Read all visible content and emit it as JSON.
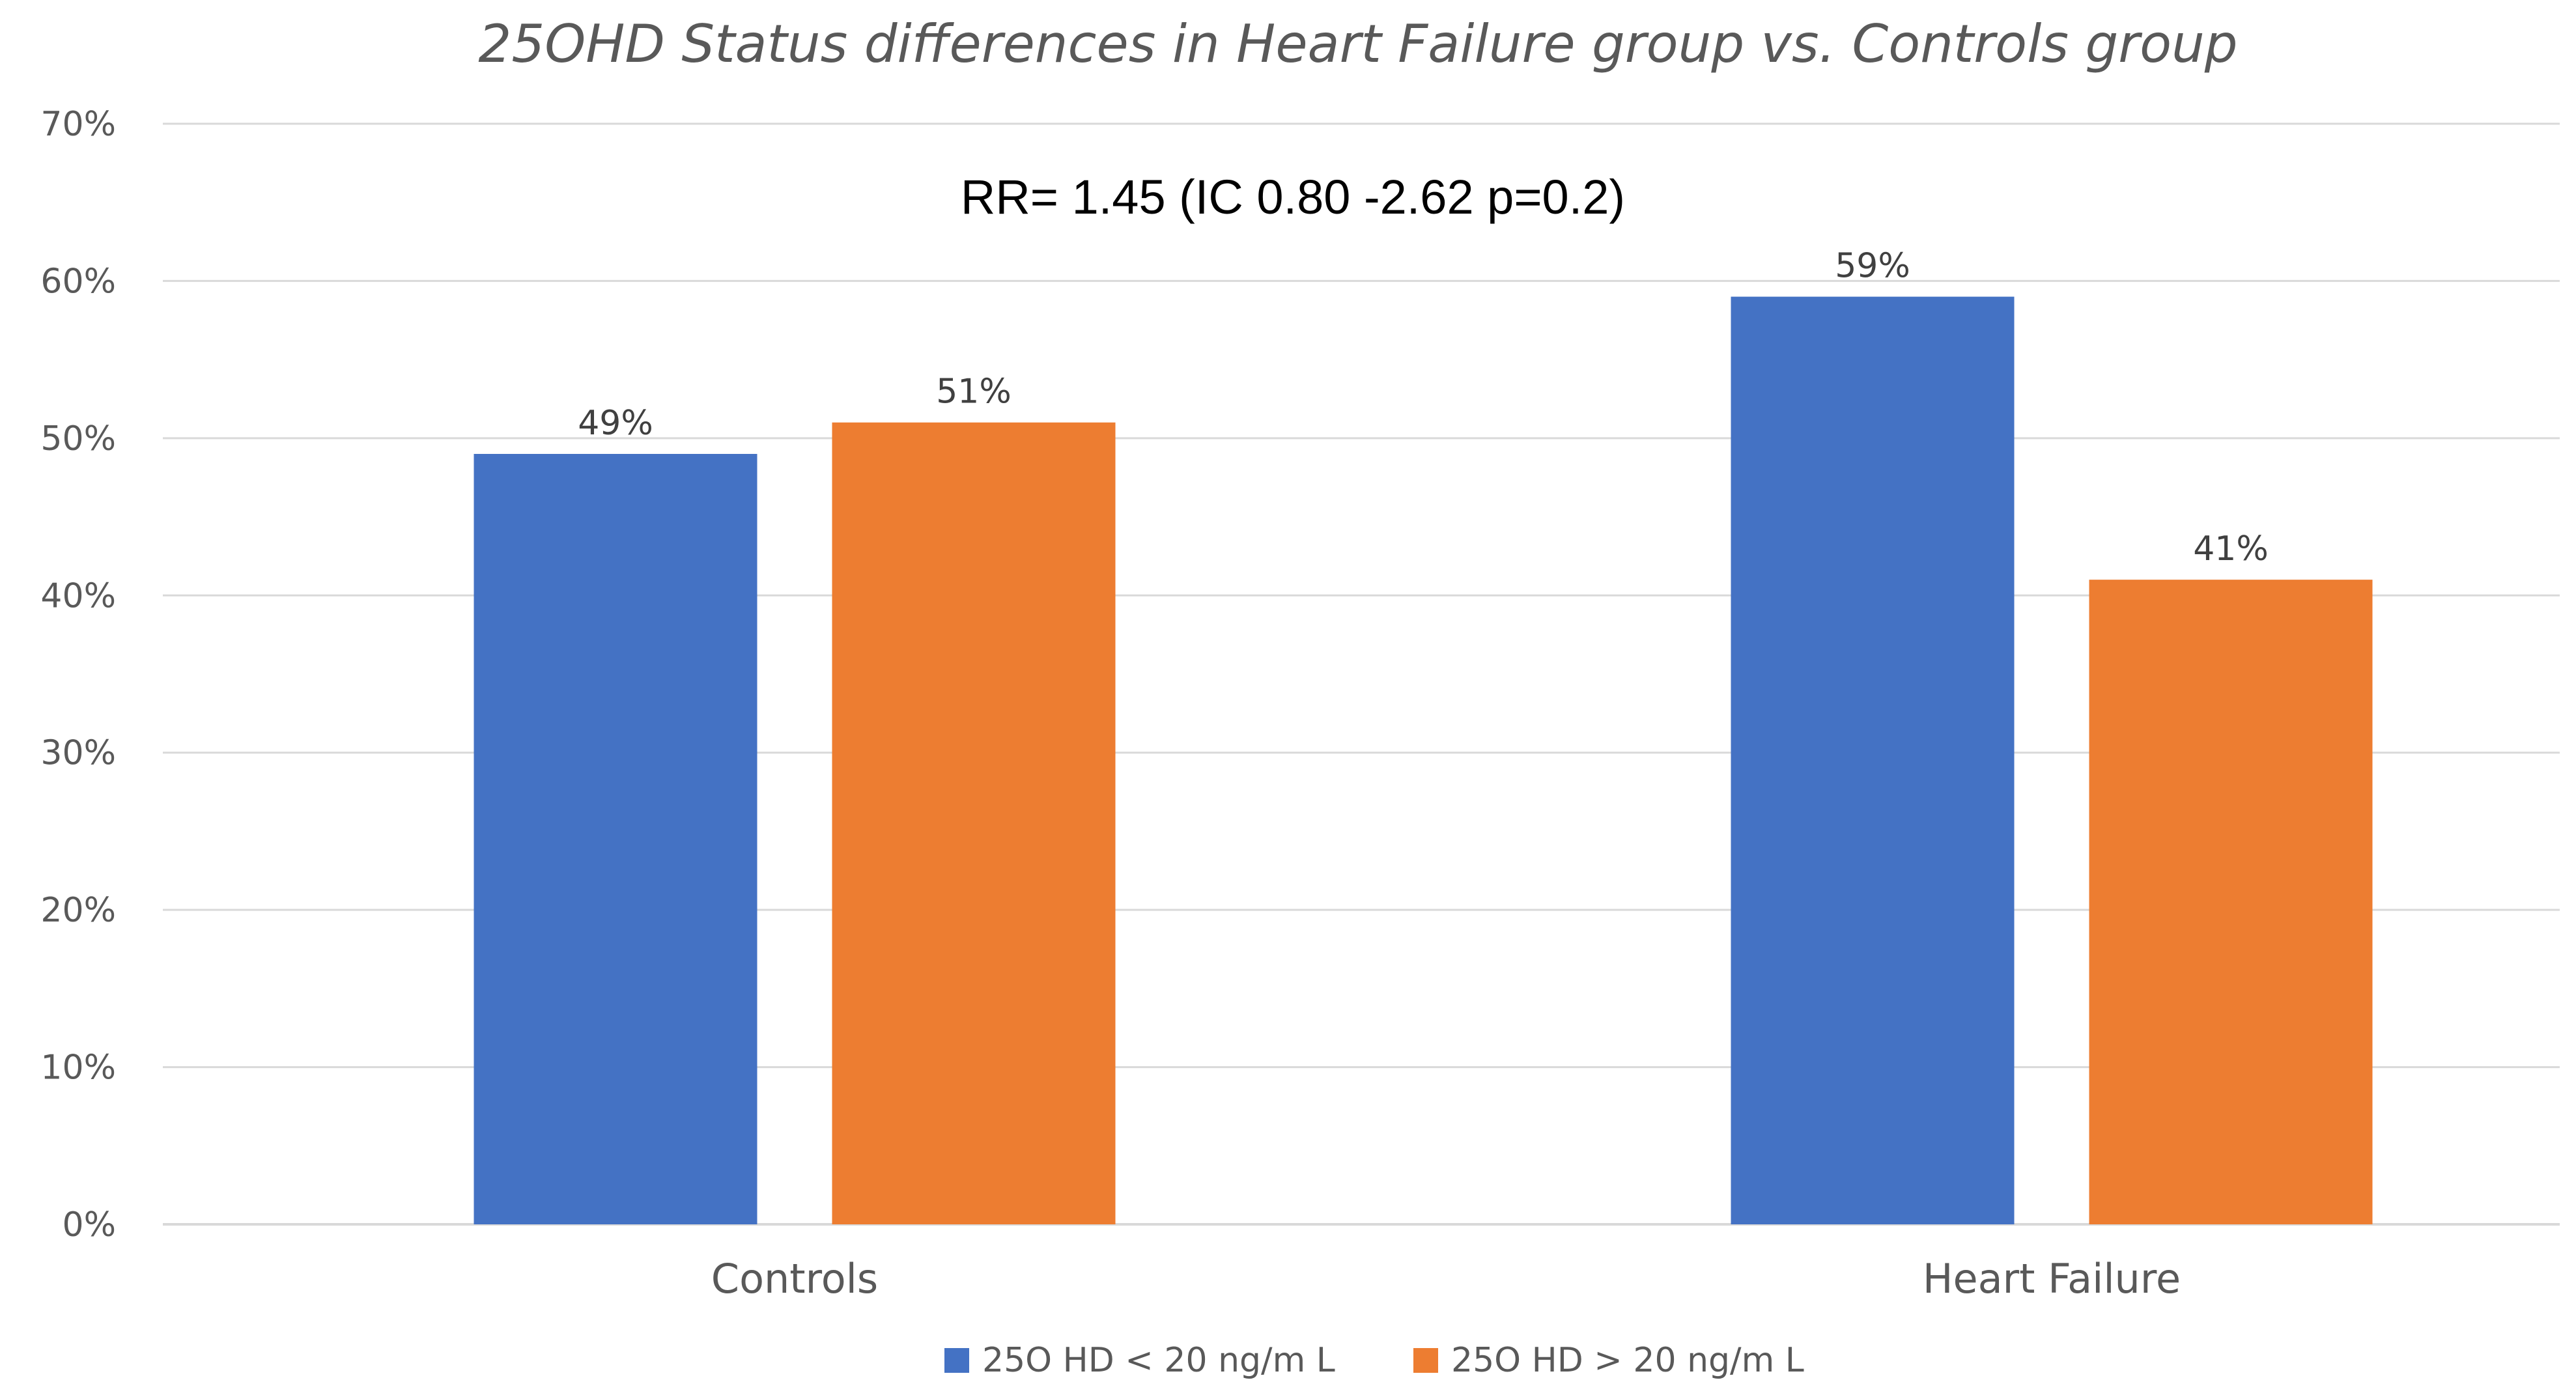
{
  "chart_data": {
    "type": "bar",
    "title": "25OHD Status differences in Heart Failure group vs. Controls group",
    "annotation": "RR= 1.45 (IC 0.80 -2.62 p=0.2)",
    "categories": [
      "Controls",
      "Heart Failure"
    ],
    "series": [
      {
        "name": "25O HD < 20 ng/m L",
        "values": [
          49,
          59
        ],
        "color": "#4472c4"
      },
      {
        "name": "25O HD > 20 ng/m L",
        "values": [
          51,
          41
        ],
        "color": "#ed7d31"
      }
    ],
    "ylim": [
      0,
      70
    ],
    "yticks": [
      0,
      10,
      20,
      30,
      40,
      50,
      60,
      70
    ],
    "tick_suffix": "%",
    "grid": true,
    "legend_position": "bottom"
  }
}
